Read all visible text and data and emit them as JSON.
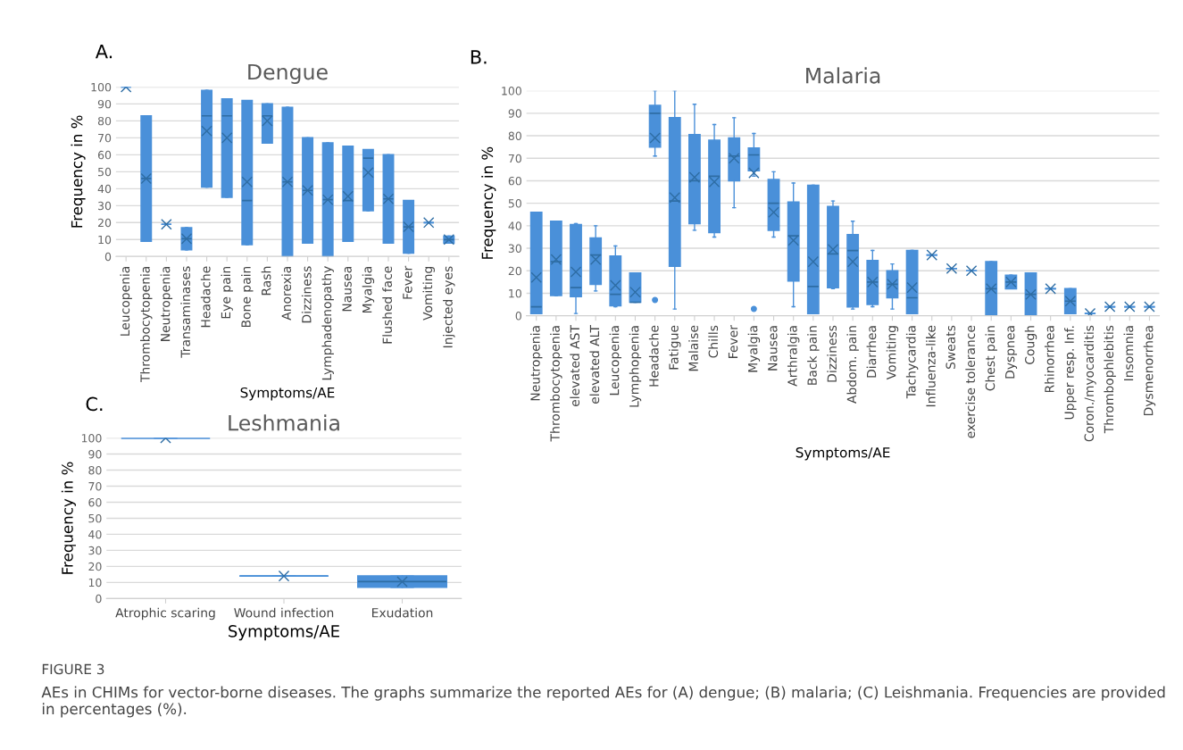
{
  "chart_data": [
    {
      "type": "box",
      "title": "Dengue",
      "xlabel": "Symptoms/AE",
      "ylabel": "Frequency in %",
      "annotations": [
        "A."
      ],
      "categories": [
        "Leucopenia",
        "Thrombocytopenia",
        "Neutropenia",
        "Transaminases",
        "Headache",
        "Eye pain",
        "Bone pain",
        "Rash",
        "Anorexia",
        "Dizziness",
        "Lymphadenopathy",
        "Nausea",
        "Myalgia",
        "Flushed face",
        "Fever",
        "Vomiting",
        "Injected eyes"
      ],
      "boxes": [
        {
          "low": 100,
          "q1": 100,
          "median": 100,
          "q3": 100,
          "high": 100,
          "mean": 100
        },
        {
          "low": 9,
          "q1": 9,
          "median": 46,
          "q3": 83,
          "high": 83,
          "mean": 46
        },
        {
          "low": 19,
          "q1": 19,
          "median": 19,
          "q3": 19,
          "high": 19,
          "mean": 19
        },
        {
          "low": 4,
          "q1": 4,
          "median": 10.5,
          "q3": 17,
          "high": 17,
          "mean": 10.5
        },
        {
          "low": 41,
          "q1": 41,
          "median": 83,
          "q3": 98,
          "high": 98,
          "mean": 74
        },
        {
          "low": 35,
          "q1": 35,
          "median": 83,
          "q3": 93,
          "high": 93,
          "mean": 70
        },
        {
          "low": 7,
          "q1": 7,
          "median": 33,
          "q3": 92,
          "high": 92,
          "mean": 44
        },
        {
          "low": 67,
          "q1": 67,
          "median": 83,
          "q3": 90,
          "high": 90,
          "mean": 80
        },
        {
          "low": 0,
          "q1": 0,
          "median": 44,
          "q3": 88,
          "high": 88,
          "mean": 44
        },
        {
          "low": 8,
          "q1": 8,
          "median": 39,
          "q3": 70,
          "high": 70,
          "mean": 39
        },
        {
          "low": 0,
          "q1": 0,
          "median": 33.5,
          "q3": 67,
          "high": 67,
          "mean": 33.5
        },
        {
          "low": 9,
          "q1": 9,
          "median": 33,
          "q3": 65,
          "high": 65,
          "mean": 35.5
        },
        {
          "low": 27,
          "q1": 27,
          "median": 58,
          "q3": 63,
          "high": 63,
          "mean": 49.5
        },
        {
          "low": 8,
          "q1": 8,
          "median": 34,
          "q3": 60,
          "high": 60,
          "mean": 34
        },
        {
          "low": 2,
          "q1": 2,
          "median": 17.5,
          "q3": 33,
          "high": 33,
          "mean": 17.5
        },
        {
          "low": 20,
          "q1": 20,
          "median": 20,
          "q3": 20,
          "high": 20,
          "mean": 20
        },
        {
          "low": 8,
          "q1": 8,
          "median": 10,
          "q3": 12,
          "high": 12,
          "mean": 10
        }
      ],
      "color": "#4a90d9",
      "ylim": [
        0,
        100
      ],
      "yticks": [
        0,
        10,
        20,
        30,
        40,
        50,
        60,
        70,
        80,
        90,
        100
      ],
      "grid": "y",
      "marker": "cross"
    },
    {
      "type": "box",
      "title": "Malaria",
      "xlabel": "Symptoms/AE",
      "ylabel": "Frequency in %",
      "annotations": [
        "B."
      ],
      "categories": [
        "Neutropenia",
        "Thrombocytopenia",
        "elevated AST",
        "elevated ALT",
        "Leucopenia",
        "Lymphopenia",
        "Headache",
        "Fatigue",
        "Malaise",
        "Chills",
        "Fever",
        "Myalgia",
        "Nausea",
        "Arthralgia",
        "Back pain",
        "Dizziness",
        "Abdom. pain",
        "Diarrhea",
        "Vomiting",
        "Tachycardia",
        "Influenza-like",
        "Sweats",
        "exercise tolerance",
        "Chest pain",
        "Dyspnea",
        "Cough",
        "Rhinorrhea",
        "Upper resp. Inf.",
        "Coron./myocarditis",
        "Thrombophlebitis",
        "Insomnia",
        "Dysmenorrhea"
      ],
      "boxes": [
        {
          "low": 1,
          "q1": 1,
          "median": 4,
          "q3": 46,
          "high": 46,
          "mean": 17
        },
        {
          "low": 9,
          "q1": 9,
          "median": 24,
          "q3": 42,
          "high": 42,
          "mean": 25
        },
        {
          "low": 1,
          "q1": 8.5,
          "median": 12.5,
          "q3": 40.5,
          "high": 41,
          "mean": 19.5
        },
        {
          "low": 11,
          "q1": 14,
          "median": 27,
          "q3": 34.5,
          "high": 40,
          "mean": 25
        },
        {
          "low": 4,
          "q1": 4.5,
          "median": 9.5,
          "q3": 26.5,
          "high": 31,
          "mean": 13.5
        },
        {
          "low": 6,
          "q1": 6,
          "median": 6,
          "q3": 19,
          "high": 19,
          "mean": 10.5
        },
        {
          "low": 71,
          "q1": 75,
          "median": 90,
          "q3": 93.5,
          "high": 100,
          "mean": 79,
          "outliers": [
            7
          ]
        },
        {
          "low": 3,
          "q1": 22,
          "median": 51,
          "q3": 88,
          "high": 100,
          "mean": 52.5
        },
        {
          "low": 38,
          "q1": 41,
          "median": 60,
          "q3": 80.5,
          "high": 94,
          "mean": 61.5
        },
        {
          "low": 35,
          "q1": 37,
          "median": 62,
          "q3": 78,
          "high": 85,
          "mean": 59.5
        },
        {
          "low": 48,
          "q1": 60,
          "median": 71,
          "q3": 79,
          "high": 88,
          "mean": 70
        },
        {
          "low": 62,
          "q1": 64.5,
          "median": 71.5,
          "q3": 74.5,
          "high": 81,
          "mean": 63.5,
          "outliers": [
            3
          ]
        },
        {
          "low": 35,
          "q1": 38,
          "median": 50,
          "q3": 60.5,
          "high": 64,
          "mean": 46
        },
        {
          "low": 4,
          "q1": 15.5,
          "median": 35.5,
          "q3": 50.5,
          "high": 59,
          "mean": 33.5
        },
        {
          "low": 1,
          "q1": 1,
          "median": 13,
          "q3": 58,
          "high": 58,
          "mean": 24
        },
        {
          "low": 12,
          "q1": 12.5,
          "median": 27.5,
          "q3": 48.5,
          "high": 51,
          "mean": 29.5
        },
        {
          "low": 3,
          "q1": 4,
          "median": 29,
          "q3": 36,
          "high": 42,
          "mean": 24
        },
        {
          "low": 4,
          "q1": 5,
          "median": 15,
          "q3": 24.5,
          "high": 29,
          "mean": 15
        },
        {
          "low": 3,
          "q1": 8,
          "median": 14,
          "q3": 20,
          "high": 23,
          "mean": 14
        },
        {
          "low": 1,
          "q1": 1,
          "median": 8,
          "q3": 29,
          "high": 29,
          "mean": 12.5
        },
        {
          "low": 27,
          "q1": 27,
          "median": 27,
          "q3": 27,
          "high": 27,
          "mean": 27
        },
        {
          "low": 21,
          "q1": 21,
          "median": 21,
          "q3": 21,
          "high": 21,
          "mean": 21
        },
        {
          "low": 20,
          "q1": 20,
          "median": 20,
          "q3": 20,
          "high": 20,
          "mean": 20
        },
        {
          "low": 0,
          "q1": 0,
          "median": 12,
          "q3": 24,
          "high": 24,
          "mean": 12
        },
        {
          "low": 12,
          "q1": 12,
          "median": 15,
          "q3": 18,
          "high": 18,
          "mean": 15
        },
        {
          "low": 0,
          "q1": 0,
          "median": 9.5,
          "q3": 19,
          "high": 19,
          "mean": 9.5
        },
        {
          "low": 12,
          "q1": 12,
          "median": 12,
          "q3": 12,
          "high": 12,
          "mean": 12
        },
        {
          "low": 1,
          "q1": 1,
          "median": 6.5,
          "q3": 12,
          "high": 12,
          "mean": 6.5
        },
        {
          "low": 1,
          "q1": 1,
          "median": 1,
          "q3": 1,
          "high": 1,
          "mean": 1
        },
        {
          "low": 4,
          "q1": 4,
          "median": 4,
          "q3": 4,
          "high": 4,
          "mean": 4
        },
        {
          "low": 4,
          "q1": 4,
          "median": 4,
          "q3": 4,
          "high": 4,
          "mean": 4
        },
        {
          "low": 4,
          "q1": 4,
          "median": 4,
          "q3": 4,
          "high": 4,
          "mean": 4
        }
      ],
      "color": "#4a90d9",
      "ylim": [
        0,
        100
      ],
      "yticks": [
        0,
        10,
        20,
        30,
        40,
        50,
        60,
        70,
        80,
        90,
        100
      ],
      "grid": "y",
      "marker": "cross"
    },
    {
      "type": "box",
      "title": "Leshmania",
      "xlabel": "Symptoms/AE",
      "ylabel": "Frequency in %",
      "annotations": [
        "C.",
        "FIGURE 3",
        "AEs in CHIMs for vector-borne diseases. The graphs summarize the reported AEs for (A) dengue; (B) malaria; (C) Leishmania. Frequencies are provided in percentages (%)."
      ],
      "categories": [
        "Atrophic scaring",
        "Wound infection",
        "Exudation"
      ],
      "boxes": [
        {
          "low": 100,
          "q1": 100,
          "median": 100,
          "q3": 100,
          "high": 100,
          "mean": 100
        },
        {
          "low": 14,
          "q1": 14,
          "median": 14,
          "q3": 14,
          "high": 14,
          "mean": 14
        },
        {
          "low": 7,
          "q1": 7,
          "median": 10.5,
          "q3": 14,
          "high": 14,
          "mean": 10.5
        }
      ],
      "color": "#4a90d9",
      "ylim": [
        0,
        100
      ],
      "yticks": [
        0,
        10,
        20,
        30,
        40,
        50,
        60,
        70,
        80,
        90,
        100
      ],
      "grid": "y",
      "marker": "cross"
    }
  ]
}
